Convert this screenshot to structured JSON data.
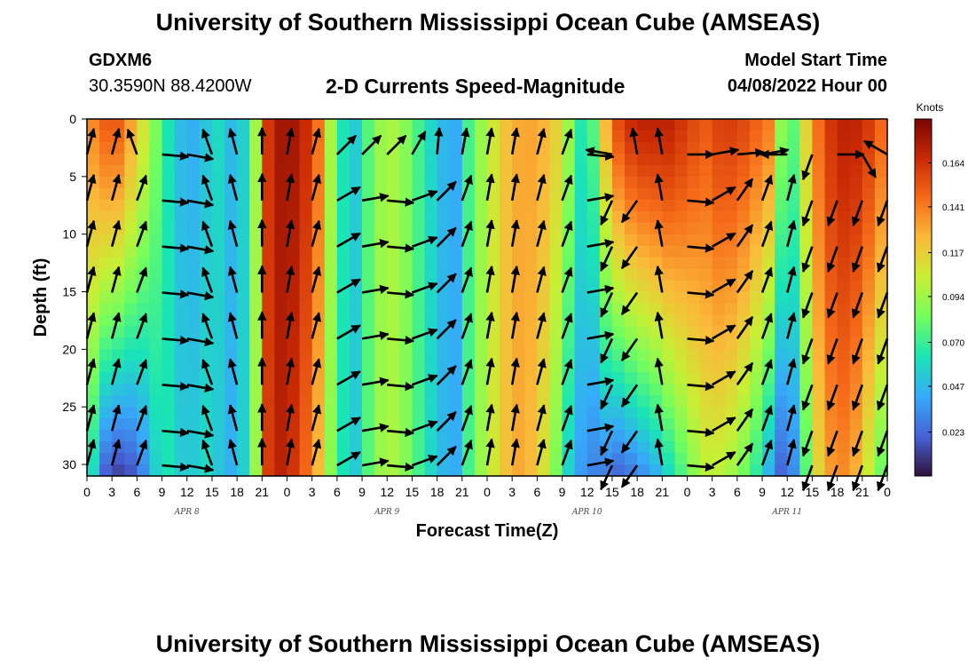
{
  "header": {
    "title": "University of Southern Mississippi Ocean Cube (AMSEAS)",
    "station": "GDXM6",
    "coords": "30.3590N  88.4200W",
    "plot_title": "2-D Currents Speed-Magnitude",
    "model_start_label": "Model Start Time",
    "model_start_value": "04/08/2022 Hour 00"
  },
  "footer": {
    "title": "University of Southern Mississippi Ocean Cube (AMSEAS)"
  },
  "chart_data": {
    "type": "heatmap",
    "title": "2-D Currents Speed-Magnitude",
    "xlabel": "Forecast Time(Z)",
    "ylabel": "Depth (ft)",
    "x_hours": [
      0,
      3,
      6,
      9,
      12,
      15,
      18,
      21,
      24,
      27,
      30,
      33,
      36,
      39,
      42,
      45,
      48,
      51,
      54,
      57,
      60,
      63,
      66,
      69,
      72,
      75,
      78,
      81,
      84,
      87,
      90,
      93,
      96
    ],
    "x_tick_labels": [
      "0",
      "3",
      "6",
      "9",
      "12",
      "15",
      "18",
      "21",
      "0",
      "3",
      "6",
      "9",
      "12",
      "15",
      "18",
      "21",
      "0",
      "3",
      "6",
      "9",
      "12",
      "15",
      "18",
      "21",
      "0",
      "3",
      "6",
      "9",
      "12",
      "15",
      "18",
      "21",
      "0"
    ],
    "date_labels": [
      {
        "label": "APR 8",
        "hour": 12
      },
      {
        "label": "APR 9",
        "hour": 36
      },
      {
        "label": "APR 10",
        "hour": 60
      },
      {
        "label": "APR 11",
        "hour": 84
      }
    ],
    "y_ticks": [
      0,
      5,
      10,
      15,
      20,
      25,
      30
    ],
    "y_tick_labels": [
      "0",
      "5",
      "10",
      "15",
      "20",
      "25",
      "30"
    ],
    "ylim": [
      0,
      31
    ],
    "xlim": [
      0,
      96
    ],
    "colorbar": {
      "unit": "Knots",
      "range": [
        0,
        0.187
      ],
      "tick_values": [
        0.164,
        0.141,
        0.117,
        0.094,
        0.07,
        0.047,
        0.023
      ],
      "tick_labels": [
        "0.164",
        "0.141",
        "0.117",
        "0.094",
        "0.070",
        "0.047",
        "0.023"
      ],
      "colors": [
        "#30123b",
        "#4662d7",
        "#36aaf9",
        "#1ae4b6",
        "#72fe5e",
        "#c8ef34",
        "#faba39",
        "#f66b19",
        "#ca2a04",
        "#7a0403"
      ]
    },
    "speed_profile_knots": {
      "hours": [
        0,
        2,
        4,
        6,
        8,
        9,
        10,
        12,
        14,
        16,
        18,
        20,
        21,
        22,
        24,
        26,
        28,
        30,
        32,
        34,
        36,
        38,
        40,
        42,
        44,
        45,
        46,
        48,
        50,
        52,
        54,
        56,
        58,
        60,
        62,
        64,
        66,
        68,
        70,
        72,
        74,
        76,
        78,
        80,
        82,
        84,
        86,
        88,
        90,
        92,
        94,
        96
      ],
      "surface": [
        0.13,
        0.15,
        0.15,
        0.12,
        0.09,
        0.07,
        0.06,
        0.04,
        0.05,
        0.06,
        0.04,
        0.08,
        0.14,
        0.17,
        0.18,
        0.17,
        0.14,
        0.07,
        0.05,
        0.08,
        0.1,
        0.09,
        0.07,
        0.05,
        0.04,
        0.05,
        0.08,
        0.1,
        0.12,
        0.13,
        0.13,
        0.12,
        0.09,
        0.05,
        0.12,
        0.16,
        0.17,
        0.17,
        0.17,
        0.16,
        0.15,
        0.16,
        0.16,
        0.15,
        0.14,
        0.06,
        0.11,
        0.15,
        0.17,
        0.17,
        0.16,
        0.14
      ],
      "bottom": [
        0.08,
        0.02,
        0.01,
        0.02,
        0.05,
        0.07,
        0.06,
        0.05,
        0.06,
        0.05,
        0.04,
        0.08,
        0.13,
        0.17,
        0.17,
        0.15,
        0.12,
        0.07,
        0.05,
        0.08,
        0.1,
        0.09,
        0.07,
        0.05,
        0.04,
        0.05,
        0.08,
        0.1,
        0.12,
        0.13,
        0.12,
        0.09,
        0.05,
        0.03,
        0.03,
        0.02,
        0.03,
        0.04,
        0.06,
        0.08,
        0.1,
        0.1,
        0.09,
        0.07,
        0.04,
        0.01,
        0.07,
        0.12,
        0.14,
        0.13,
        0.1,
        0.07
      ]
    },
    "arrows": {
      "hours": [
        0,
        3,
        6,
        9,
        12,
        15,
        18,
        21,
        24,
        27,
        30,
        33,
        36,
        39,
        42,
        45,
        48,
        51,
        54,
        57,
        60,
        63,
        66,
        69,
        72,
        75,
        78,
        81,
        84,
        87,
        90,
        93,
        96
      ],
      "depths": [
        2,
        6,
        10,
        14,
        18,
        22,
        26,
        29
      ],
      "direction_deg": [
        15,
        15,
        20,
        95,
        100,
        340,
        345,
        0,
        10,
        15,
        60,
        80,
        95,
        70,
        45,
        20,
        10,
        10,
        15,
        20,
        80,
        205,
        215,
        350,
        95,
        60,
        35,
        20,
        15,
        200,
        200,
        200,
        200
      ],
      "surface_direction_deg": [
        15,
        15,
        340,
        95,
        100,
        340,
        345,
        0,
        10,
        15,
        45,
        45,
        45,
        30,
        5,
        10,
        10,
        10,
        15,
        20,
        95,
        280,
        350,
        350,
        90,
        80,
        85,
        80,
        270,
        200,
        90,
        150,
        300
      ]
    }
  }
}
